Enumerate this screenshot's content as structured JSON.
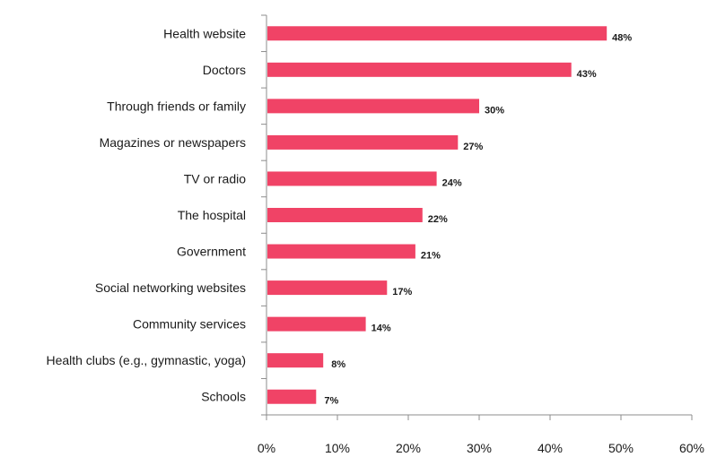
{
  "chart_data": {
    "type": "bar",
    "orientation": "horizontal",
    "title": "",
    "xlabel": "",
    "ylabel": "",
    "xlim": [
      0,
      60
    ],
    "x_ticks": [
      "0%",
      "10%",
      "20%",
      "30%",
      "40%",
      "50%",
      "60%"
    ],
    "grid": false,
    "bar_color": "#f04366",
    "categories": [
      "Health website",
      "Doctors",
      "Through friends or family",
      "Magazines or newspapers",
      "TV or radio",
      "The hospital",
      "Government",
      "Social networking websites",
      "Community services",
      "Health clubs (e.g., gymnastic, yoga)",
      "Schools"
    ],
    "values": [
      48,
      43,
      30,
      27,
      24,
      22,
      21,
      17,
      14,
      8,
      7
    ],
    "data_labels": [
      "48%",
      "43%",
      "30%",
      "27%",
      "24%",
      "22%",
      "21%",
      "17%",
      "14%",
      "8%",
      "7%"
    ]
  }
}
